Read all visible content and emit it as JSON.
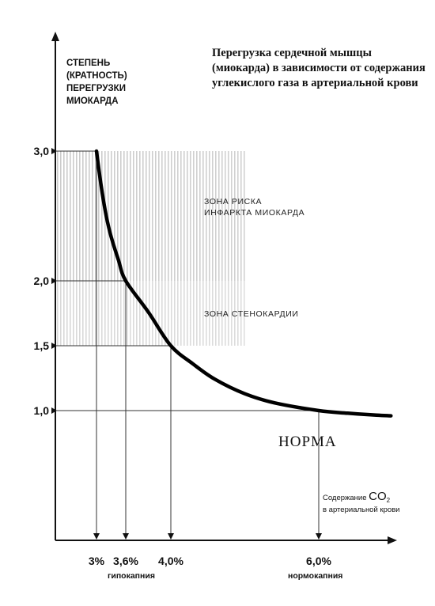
{
  "chart_data": {
    "type": "line",
    "title": "Перегрузка сердечной мышцы (миокарда) в зависимости от содержания углекислого газа в артериальной крови",
    "ylabel": "СТЕПЕНЬ (КРАТНОСТЬ) ПЕРЕГРУЗКИ МИОКАРДА",
    "xlabel": {
      "prefix": "Содержание",
      "symbol": "CO",
      "subscript": "2",
      "suffix": "в артериальной крови"
    },
    "x_ticks": [
      {
        "value": 3.0,
        "label": "3%"
      },
      {
        "value": 3.6,
        "label": "3,6%"
      },
      {
        "value": 4.0,
        "label": "4,0%"
      },
      {
        "value": 6.0,
        "label": "6,0%"
      }
    ],
    "y_ticks": [
      {
        "value": 1.0,
        "label": "1,0"
      },
      {
        "value": 1.5,
        "label": "1,5"
      },
      {
        "value": 2.0,
        "label": "2,0"
      },
      {
        "value": 3.0,
        "label": "3,0"
      }
    ],
    "x_categories": [
      {
        "label": "гипокапния",
        "x_center": 3.5
      },
      {
        "label": "нормокапния",
        "x_center": 6.0
      }
    ],
    "xlim": [
      2.3,
      7.5
    ],
    "ylim": [
      0,
      3.95
    ],
    "series": [
      {
        "x": [
          3.0,
          3.1,
          3.2,
          3.3,
          3.45,
          3.6,
          3.8,
          4.0,
          4.3,
          4.6,
          5.0,
          5.4,
          6.0,
          6.4,
          6.8,
          7.0
        ],
        "y": [
          3.0,
          2.72,
          2.5,
          2.34,
          2.16,
          2.0,
          1.76,
          1.5,
          1.36,
          1.24,
          1.13,
          1.06,
          1.0,
          0.98,
          0.965,
          0.96
        ]
      }
    ],
    "zones": [
      {
        "label": "ЗОНА РИСКА\nИНФАРКТА МИОКАРДА",
        "y_from": 2.0,
        "y_to": 3.0
      },
      {
        "label": "ЗОНА СТЕНОКАРДИИ",
        "y_from": 1.5,
        "y_to": 2.0
      }
    ],
    "annotations": [
      {
        "label": "НОРМА"
      }
    ],
    "guides": [
      {
        "x": 3.0,
        "y": 3.0
      },
      {
        "x": 3.6,
        "y": 2.0
      },
      {
        "x": 4.0,
        "y": 1.5
      },
      {
        "x": 6.0,
        "y": 1.0
      }
    ],
    "grid": false
  }
}
